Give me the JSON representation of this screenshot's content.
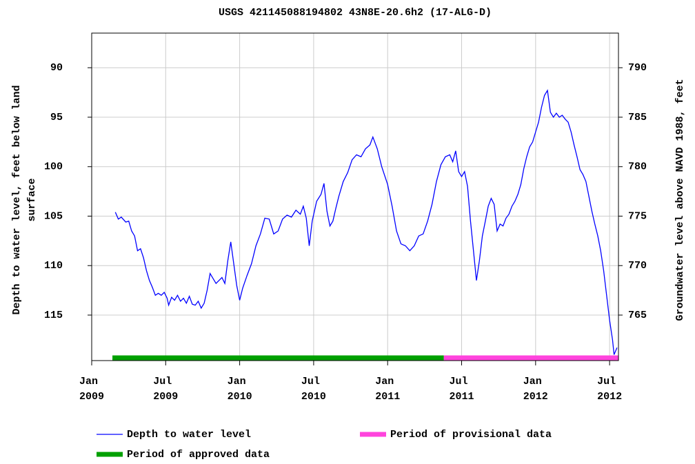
{
  "chart_data": {
    "type": "line",
    "title": "USGS 421145088194802 43N8E-20.6h2 (17-ALG-D)",
    "ylabel": [
      "Depth to water level, feet below land",
      "surface"
    ],
    "y2label": "Groundwater level above NAVD 1988, feet",
    "xlim": [
      2009,
      2012.56
    ],
    "xticks": [
      {
        "value": 2009,
        "label": "Jan 2009"
      },
      {
        "value": 2009.5,
        "label": "Jul 2009"
      },
      {
        "value": 2010,
        "label": "Jan 2010"
      },
      {
        "value": 2010.5,
        "label": "Jul 2010"
      },
      {
        "value": 2011,
        "label": "Jan 2011"
      },
      {
        "value": 2011.5,
        "label": "Jul 2011"
      },
      {
        "value": 2012,
        "label": "Jan 2012"
      },
      {
        "value": 2012.5,
        "label": "Jul 2012"
      }
    ],
    "ylim": [
      119.6,
      86.5
    ],
    "yticks": [
      90,
      95,
      100,
      105,
      110,
      115
    ],
    "y2lim": [
      760.4,
      793.5
    ],
    "y2ticks": [
      765,
      770,
      775,
      780,
      785,
      790
    ],
    "grid": true,
    "x": [
      2009.16,
      2009.18,
      2009.2,
      2009.23,
      2009.25,
      2009.27,
      2009.29,
      2009.31,
      2009.33,
      2009.35,
      2009.37,
      2009.39,
      2009.41,
      2009.43,
      2009.45,
      2009.47,
      2009.49,
      2009.51,
      2009.52,
      2009.54,
      2009.56,
      2009.58,
      2009.6,
      2009.62,
      2009.64,
      2009.66,
      2009.68,
      2009.7,
      2009.72,
      2009.74,
      2009.76,
      2009.78,
      2009.8,
      2009.82,
      2009.84,
      2009.86,
      2009.88,
      2009.9,
      2009.92,
      2009.94,
      2009.96,
      2009.98,
      2010,
      2010.02,
      2010.05,
      2010.08,
      2010.11,
      2010.14,
      2010.17,
      2010.2,
      2010.23,
      2010.26,
      2010.29,
      2010.32,
      2010.35,
      2010.38,
      2010.41,
      2010.43,
      2010.45,
      2010.47,
      2010.49,
      2010.52,
      2010.55,
      2010.57,
      2010.59,
      2010.61,
      2010.63,
      2010.65,
      2010.67,
      2010.7,
      2010.73,
      2010.76,
      2010.79,
      2010.82,
      2010.85,
      2010.88,
      2010.9,
      2010.93,
      2010.96,
      2011,
      2011.03,
      2011.06,
      2011.09,
      2011.12,
      2011.15,
      2011.18,
      2011.21,
      2011.24,
      2011.27,
      2011.3,
      2011.33,
      2011.36,
      2011.39,
      2011.42,
      2011.44,
      2011.46,
      2011.48,
      2011.5,
      2011.52,
      2011.54,
      2011.56,
      2011.58,
      2011.6,
      2011.62,
      2011.64,
      2011.66,
      2011.68,
      2011.7,
      2011.72,
      2011.74,
      2011.76,
      2011.78,
      2011.8,
      2011.82,
      2011.84,
      2011.86,
      2011.88,
      2011.9,
      2011.92,
      2011.94,
      2011.96,
      2011.98,
      2012,
      2012.02,
      2012.04,
      2012.06,
      2012.08,
      2012.1,
      2012.12,
      2012.14,
      2012.16,
      2012.18,
      2012.2,
      2012.22,
      2012.24,
      2012.26,
      2012.28,
      2012.3,
      2012.32,
      2012.34,
      2012.36,
      2012.38,
      2012.4,
      2012.42,
      2012.44,
      2012.46,
      2012.48,
      2012.5,
      2012.52,
      2012.53,
      2012.55
    ],
    "series": [
      {
        "name": "Depth to water level",
        "color": "#0000ff",
        "values": [
          104.6,
          105.3,
          105.1,
          105.6,
          105.5,
          106.5,
          107.0,
          108.5,
          108.3,
          109.2,
          110.5,
          111.5,
          112.2,
          113.0,
          112.8,
          113.0,
          112.7,
          113.3,
          114.0,
          113.2,
          113.5,
          113.0,
          113.6,
          113.3,
          113.8,
          113.1,
          113.9,
          114.0,
          113.6,
          114.3,
          113.8,
          112.5,
          110.8,
          111.3,
          111.8,
          111.5,
          111.2,
          111.8,
          109.5,
          107.6,
          109.8,
          112.0,
          113.5,
          112.3,
          111.0,
          109.8,
          108.0,
          106.8,
          105.2,
          105.3,
          106.8,
          106.5,
          105.3,
          104.9,
          105.1,
          104.4,
          104.8,
          104.0,
          105.2,
          108.0,
          105.5,
          103.5,
          102.8,
          101.7,
          104.5,
          106.0,
          105.5,
          104.2,
          103.0,
          101.5,
          100.6,
          99.3,
          98.8,
          99.0,
          98.2,
          97.8,
          97.0,
          98.2,
          100.0,
          101.8,
          104.0,
          106.5,
          107.8,
          108.0,
          108.5,
          108.0,
          107.0,
          106.8,
          105.5,
          103.8,
          101.5,
          99.8,
          99.0,
          98.8,
          99.5,
          98.4,
          100.5,
          101.0,
          100.5,
          102.0,
          105.5,
          108.5,
          111.5,
          109.5,
          107.0,
          105.5,
          104.0,
          103.2,
          103.8,
          106.5,
          105.8,
          106.0,
          105.2,
          104.8,
          104.0,
          103.5,
          102.8,
          101.8,
          100.2,
          99.0,
          98.0,
          97.5,
          96.5,
          95.5,
          94.0,
          92.8,
          92.3,
          94.5,
          95.0,
          94.6,
          95.0,
          94.8,
          95.2,
          95.5,
          96.5,
          97.8,
          99.0,
          100.3,
          100.8,
          101.5,
          103.0,
          104.5,
          105.8,
          107.0,
          108.5,
          110.5,
          113.0,
          115.5,
          117.5,
          119.0,
          118.3
        ]
      }
    ],
    "periods": [
      {
        "name": "Period of approved data",
        "color": "#00a000",
        "start": 2009.14,
        "end": 2011.38
      },
      {
        "name": "Period of provisional data",
        "color": "#ff44dd",
        "start": 2011.38,
        "end": 2012.56
      }
    ]
  }
}
